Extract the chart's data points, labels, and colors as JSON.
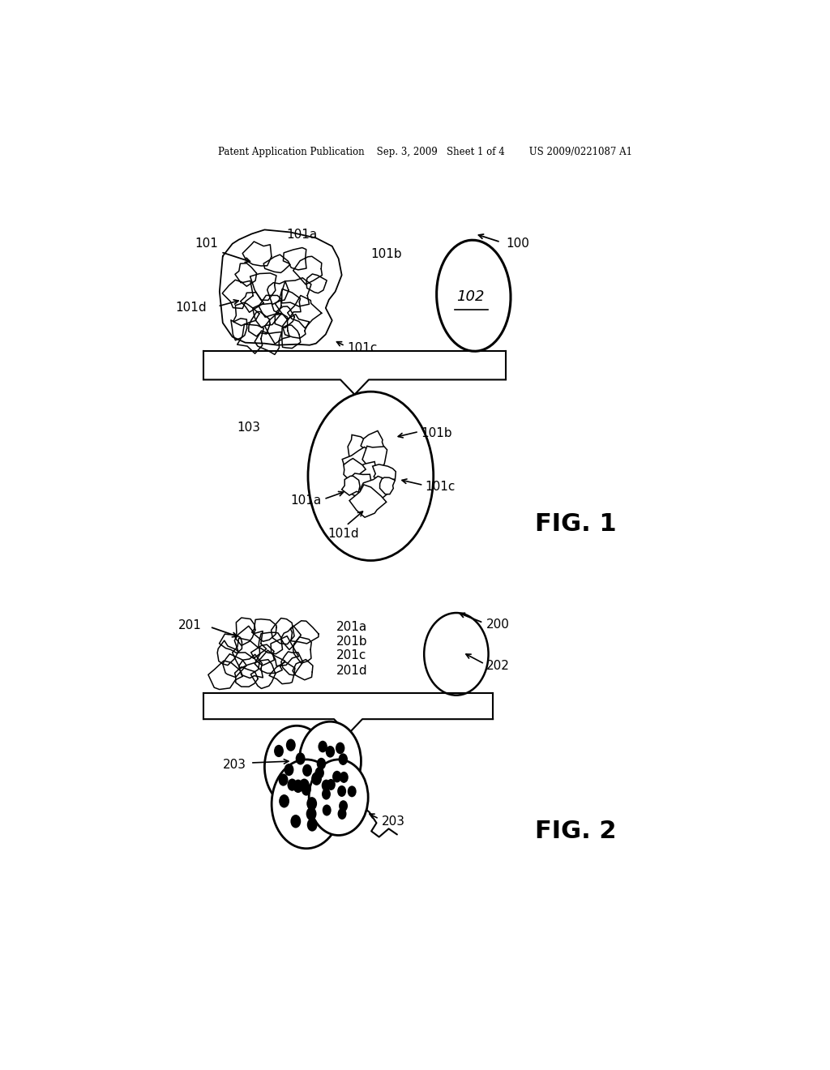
{
  "bg_color": "#ffffff",
  "header_text": "Patent Application Publication    Sep. 3, 2009   Sheet 1 of 4        US 2009/0221087 A1",
  "fig1_label": "FIG. 1",
  "fig2_label": "FIG. 2"
}
